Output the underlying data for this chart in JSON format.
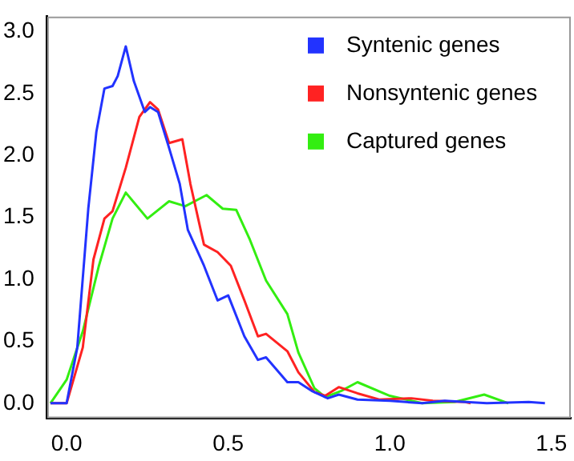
{
  "chart_data": {
    "type": "line",
    "xlim": [
      -0.06,
      1.56
    ],
    "ylim": [
      -0.12,
      3.12
    ],
    "xticks": [
      {
        "value": 0,
        "label": "0.0"
      },
      0.5,
      {
        "value": 1,
        "label": "1.0"
      },
      1.5
    ],
    "yticks": [
      {
        "value": 0,
        "label": "0.0"
      },
      0.5,
      {
        "value": 1,
        "label": "1.0"
      },
      1.5,
      {
        "value": 2,
        "label": "2.0"
      },
      2.5,
      {
        "value": 3,
        "label": "3.0"
      }
    ],
    "grid": false,
    "legend": "top right",
    "marker": "none",
    "line_style": "solid",
    "series": [
      {
        "name": "Syntenic genes",
        "color": "#2233ff",
        "x": [
          -0.05,
          0,
          0.033,
          0.067,
          0.092,
          0.117,
          0.142,
          0.158,
          0.183,
          0.208,
          0.242,
          0.258,
          0.283,
          0.317,
          0.35,
          0.375,
          0.425,
          0.467,
          0.5,
          0.55,
          0.592,
          0.617,
          0.683,
          0.717,
          0.758,
          0.808,
          0.842,
          0.9,
          1.0,
          1.1,
          1.17,
          1.3,
          1.43,
          1.48
        ],
        "values": [
          0,
          0,
          0.45,
          1.57,
          2.19,
          2.54,
          2.56,
          2.64,
          2.88,
          2.6,
          2.35,
          2.39,
          2.35,
          2.06,
          1.77,
          1.4,
          1.11,
          0.83,
          0.87,
          0.54,
          0.35,
          0.37,
          0.17,
          0.17,
          0.1,
          0.04,
          0.07,
          0.03,
          0.02,
          0,
          0.02,
          0,
          0.01,
          0
        ]
      },
      {
        "name": "Nonsyntenic genes",
        "color": "#ff2222",
        "x": [
          -0.05,
          0,
          0.05,
          0.083,
          0.117,
          0.142,
          0.183,
          0.225,
          0.258,
          0.283,
          0.317,
          0.358,
          0.383,
          0.425,
          0.467,
          0.508,
          0.55,
          0.592,
          0.617,
          0.683,
          0.717,
          0.767,
          0.8,
          0.842,
          0.9,
          0.967,
          1.067,
          1.133,
          1.233,
          1.25
        ],
        "values": [
          0,
          0,
          0.45,
          1.16,
          1.49,
          1.55,
          1.9,
          2.31,
          2.43,
          2.37,
          2.1,
          2.13,
          1.77,
          1.28,
          1.22,
          1.11,
          0.83,
          0.54,
          0.56,
          0.42,
          0.25,
          0.09,
          0.06,
          0.13,
          0.08,
          0.03,
          0.04,
          0.02,
          0.01,
          0
        ]
      },
      {
        "name": "Captured genes",
        "color": "#33ee11",
        "x": [
          -0.05,
          0,
          0.05,
          0.1,
          0.142,
          0.183,
          0.25,
          0.317,
          0.367,
          0.433,
          0.483,
          0.525,
          0.567,
          0.617,
          0.683,
          0.717,
          0.767,
          0.8,
          0.85,
          0.9,
          1.0,
          1.1,
          1.2,
          1.292,
          1.367
        ],
        "values": [
          0,
          0.19,
          0.58,
          1.11,
          1.49,
          1.7,
          1.49,
          1.63,
          1.59,
          1.68,
          1.57,
          1.56,
          1.32,
          0.99,
          0.72,
          0.41,
          0.12,
          0.05,
          0.1,
          0.17,
          0.06,
          0,
          0.01,
          0.07,
          0
        ]
      }
    ]
  }
}
